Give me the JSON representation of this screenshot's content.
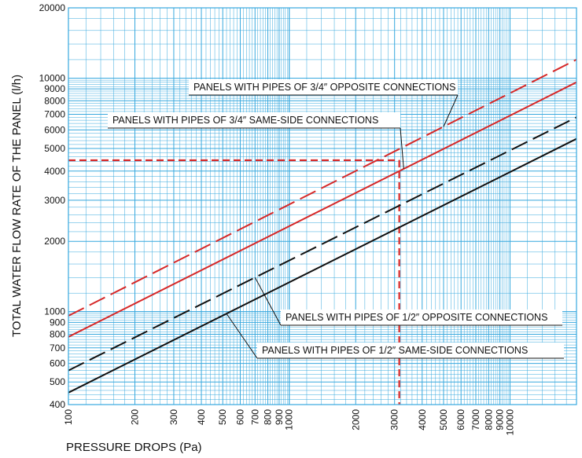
{
  "chart_data": {
    "type": "line",
    "xlabel": "PRESSURE DROPS (Pa)",
    "ylabel": "TOTAL WATER FLOW RATE OF THE PANEL (l/h)",
    "xscale": "log",
    "yscale": "log",
    "xlim": [
      100,
      20000
    ],
    "ylim": [
      400,
      20000
    ],
    "grid": true,
    "x_ticks": [
      {
        "value": 100,
        "label": "100"
      },
      {
        "value": 200,
        "label": "200"
      },
      {
        "value": 300,
        "label": "300"
      },
      {
        "value": 400,
        "label": "400"
      },
      {
        "value": 500,
        "label": "500"
      },
      {
        "value": 600,
        "label": "600"
      },
      {
        "value": 700,
        "label": "700"
      },
      {
        "value": 800,
        "label": "800"
      },
      {
        "value": 900,
        "label": "900"
      },
      {
        "value": 1000,
        "label": "1000"
      },
      {
        "value": 2000,
        "label": "2000"
      },
      {
        "value": 3000,
        "label": "3000"
      },
      {
        "value": 4000,
        "label": "4000"
      },
      {
        "value": 5000,
        "label": "5000"
      },
      {
        "value": 6000,
        "label": "6000"
      },
      {
        "value": 7000,
        "label": "7000"
      },
      {
        "value": 8000,
        "label": "8000"
      },
      {
        "value": 9000,
        "label": "9000"
      },
      {
        "value": 10000,
        "label": "10000"
      }
    ],
    "y_ticks": [
      {
        "value": 400,
        "label": "400"
      },
      {
        "value": 500,
        "label": "500"
      },
      {
        "value": 600,
        "label": "600"
      },
      {
        "value": 700,
        "label": "700"
      },
      {
        "value": 800,
        "label": "800"
      },
      {
        "value": 900,
        "label": "900"
      },
      {
        "value": 1000,
        "label": "1000"
      },
      {
        "value": 2000,
        "label": "2000"
      },
      {
        "value": 3000,
        "label": "3000"
      },
      {
        "value": 4000,
        "label": "4000"
      },
      {
        "value": 5000,
        "label": "5000"
      },
      {
        "value": 6000,
        "label": "6000"
      },
      {
        "value": 7000,
        "label": "7000"
      },
      {
        "value": 8000,
        "label": "8000"
      },
      {
        "value": 9000,
        "label": "9000"
      },
      {
        "value": 10000,
        "label": "10000"
      },
      {
        "value": 20000,
        "label": "20000"
      }
    ],
    "series": [
      {
        "name": "PANELS WITH PIPES OF 3/4″ OPPOSITE CONNECTIONS",
        "color": "#d62828",
        "style": "dashed",
        "points": [
          [
            100,
            960
          ],
          [
            20000,
            12000
          ]
        ]
      },
      {
        "name": "PANELS WITH PIPES OF 3/4″ SAME-SIDE CONNECTIONS",
        "color": "#d62828",
        "style": "solid",
        "points": [
          [
            100,
            780
          ],
          [
            20000,
            9600
          ]
        ]
      },
      {
        "name": "PANELS WITH PIPES OF 1/2″ OPPOSITE CONNECTIONS",
        "color": "#111111",
        "style": "dashed",
        "points": [
          [
            100,
            560
          ],
          [
            20000,
            6800
          ]
        ]
      },
      {
        "name": "PANELS WITH PIPES OF 1/2″ SAME-SIDE CONNECTIONS",
        "color": "#111111",
        "style": "solid",
        "points": [
          [
            100,
            450
          ],
          [
            20000,
            5500
          ]
        ]
      }
    ],
    "reference_lines": {
      "color": "#d62828",
      "x": 3150,
      "y": 4450
    },
    "callouts": [
      {
        "label": "PANELS WITH PIPES OF 3/4″ OPPOSITE CONNECTIONS",
        "series": 0,
        "at_x": 5000
      },
      {
        "label": "PANELS WITH PIPES OF 3/4″ SAME-SIDE CONNECTIONS",
        "series": 1,
        "at_x": 3300
      },
      {
        "label": "PANELS WITH PIPES OF 1/2″ OPPOSITE CONNECTIONS",
        "series": 2,
        "at_x": 700
      },
      {
        "label": "PANELS WITH PIPES OF 1/2″ SAME-SIDE CONNECTIONS",
        "series": 3,
        "at_x": 520
      }
    ]
  }
}
